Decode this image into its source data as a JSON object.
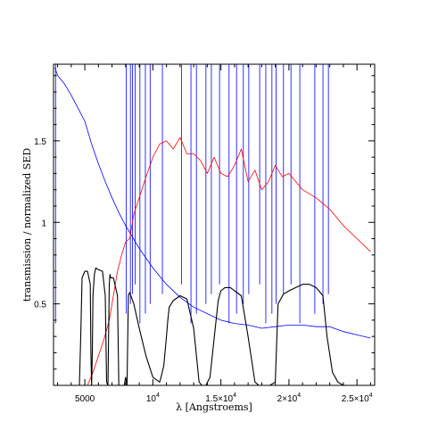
{
  "chart_data": {
    "type": "line",
    "xlabel": "λ  [Angstroems]",
    "ylabel": "transmission / normalized SED",
    "xlim": [
      2700,
      26300
    ],
    "ylim": [
      0,
      1.97
    ],
    "x_ticks": [
      {
        "value": 5000,
        "label": "5000"
      },
      {
        "value": 10000,
        "label": "10",
        "exp": "4"
      },
      {
        "value": 15000,
        "label": "1.5×10",
        "exp": "4"
      },
      {
        "value": 20000,
        "label": "2×10",
        "exp": "4"
      },
      {
        "value": 25000,
        "label": "2.5×10",
        "exp": "4"
      }
    ],
    "y_ticks": [
      {
        "value": 0.5,
        "label": "0.5"
      },
      {
        "value": 1,
        "label": "1"
      },
      {
        "value": 1.5,
        "label": "1.5"
      }
    ],
    "colors": {
      "blue_sed": "#0000ff",
      "red_sed": "#ff0000",
      "filters": "#000000"
    },
    "series": [
      {
        "color": "blue",
        "x": [
          2800,
          3000,
          3500,
          4000,
          4500,
          5000,
          5500,
          6000,
          6500,
          7000,
          7500,
          8000,
          9000,
          10000,
          11000,
          12000,
          13000,
          14000,
          15000,
          16000,
          17000,
          18000,
          19000,
          20000,
          21000,
          22000,
          23000,
          24000,
          25000,
          26000
        ],
        "y": [
          1.95,
          1.9,
          1.85,
          1.78,
          1.7,
          1.62,
          1.48,
          1.36,
          1.25,
          1.15,
          1.06,
          0.98,
          0.84,
          0.72,
          0.62,
          0.54,
          0.48,
          0.44,
          0.4,
          0.38,
          0.37,
          0.35,
          0.36,
          0.37,
          0.37,
          0.36,
          0.36,
          0.33,
          0.31,
          0.29
        ],
        "spikes_x": [
          2850,
          8050,
          8350,
          8500,
          8700,
          9050,
          9450,
          9800,
          10700,
          12100,
          12800,
          13200,
          13900,
          14300,
          14900,
          15600,
          16150,
          16650,
          17050,
          17850,
          18300,
          18750,
          19050,
          19600,
          20150,
          20800,
          21900,
          22500,
          22900
        ]
      },
      {
        "color": "red",
        "x": [
          5200,
          5600,
          6000,
          6400,
          6800,
          7100,
          7400,
          7700,
          8000,
          8300,
          8600,
          9000,
          9500,
          10000,
          10500,
          11000,
          11500,
          12000,
          12500,
          13000,
          13500,
          14000,
          14500,
          15000,
          15500,
          16000,
          16500,
          17000,
          17500,
          18000,
          18500,
          19000,
          19500,
          20000,
          21000,
          22000,
          23000,
          24000,
          25000,
          26000
        ],
        "y": [
          0.0,
          0.08,
          0.18,
          0.28,
          0.4,
          0.55,
          0.7,
          0.8,
          0.88,
          0.9,
          1.05,
          1.15,
          1.28,
          1.4,
          1.48,
          1.5,
          1.45,
          1.52,
          1.42,
          1.42,
          1.38,
          1.3,
          1.4,
          1.3,
          1.28,
          1.35,
          1.45,
          1.25,
          1.32,
          1.2,
          1.25,
          1.35,
          1.28,
          1.3,
          1.2,
          1.15,
          1.08,
          0.98,
          0.9,
          0.82
        ]
      },
      {
        "color": "black",
        "x": [
          4600,
          4700,
          4800,
          5000,
          5200,
          5400,
          5450,
          5500,
          5550,
          5600,
          5700,
          5800,
          6000,
          6300,
          6500,
          6600,
          6700,
          6800,
          6850,
          6900,
          7100,
          7400,
          7500,
          7600,
          7700,
          7800,
          7900,
          8000,
          8100,
          8200,
          8300,
          8600,
          9000,
          9500,
          10000,
          10500,
          10600,
          10800,
          11000,
          11100,
          11200,
          11500,
          12000,
          12500,
          13000,
          13400,
          13600,
          13900,
          14200,
          14800,
          15000,
          15300,
          15700,
          16000,
          16500,
          17000,
          17500,
          17800,
          18200,
          18600,
          19000,
          19200,
          19600,
          20000,
          20500,
          21000,
          21500,
          22000,
          22500,
          22800,
          23200,
          23600,
          24000,
          24300,
          24600
        ],
        "y": [
          0.0,
          0.3,
          0.66,
          0.7,
          0.7,
          0.62,
          0.2,
          0.0,
          0.2,
          0.55,
          0.68,
          0.72,
          0.71,
          0.7,
          0.55,
          0.02,
          0.0,
          0.62,
          0.68,
          0.66,
          0.66,
          0.55,
          0.0,
          0.0,
          0.0,
          0.0,
          0.0,
          0.05,
          0.0,
          0.55,
          0.57,
          0.5,
          0.35,
          0.18,
          0.05,
          0.02,
          0.05,
          0.12,
          0.3,
          0.4,
          0.48,
          0.52,
          0.55,
          0.53,
          0.35,
          0.02,
          0.0,
          0.0,
          0.05,
          0.52,
          0.58,
          0.6,
          0.6,
          0.58,
          0.55,
          0.3,
          0.02,
          0.0,
          0.0,
          0.0,
          0.02,
          0.5,
          0.56,
          0.58,
          0.6,
          0.62,
          0.62,
          0.6,
          0.55,
          0.3,
          0.08,
          0.02,
          0.0,
          0.0,
          0.0
        ]
      }
    ]
  }
}
